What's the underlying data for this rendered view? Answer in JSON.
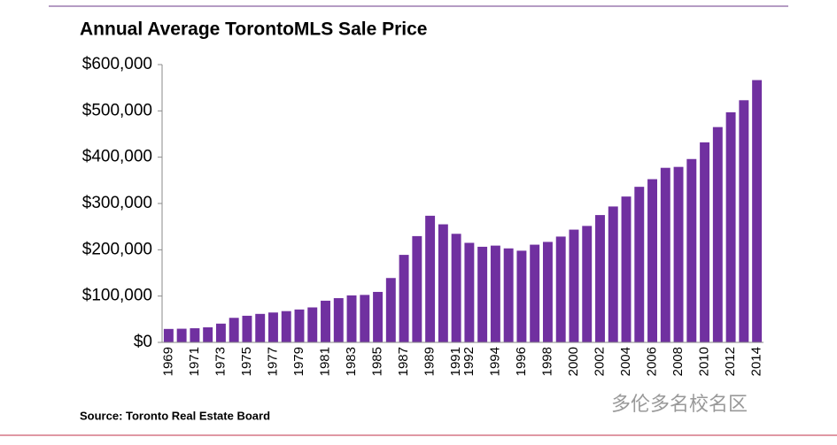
{
  "chart_data": {
    "type": "bar",
    "title": "Annual Average TorontoMLS Sale Price",
    "source": "Source: Toronto Real Estate Board",
    "watermark": "多伦多名校名区",
    "categories": [
      "1969",
      null,
      "1971",
      null,
      "1973",
      null,
      "1975",
      null,
      "1977",
      null,
      "1979",
      null,
      "1981",
      null,
      "1983",
      null,
      "1985",
      null,
      "1987",
      null,
      "1989",
      null,
      "1991",
      "1992",
      null,
      "1994",
      null,
      "1996",
      null,
      "1998",
      null,
      "2000",
      null,
      "2002",
      null,
      "2004",
      null,
      "2006",
      null,
      "2008",
      null,
      "2010",
      null,
      "2012",
      null,
      "2014"
    ],
    "values": [
      29000,
      29500,
      30500,
      32500,
      40500,
      53000,
      57500,
      61500,
      64500,
      67500,
      71000,
      75500,
      90000,
      95500,
      101500,
      102500,
      109000,
      139000,
      189000,
      229500,
      273500,
      255000,
      234500,
      215000,
      206500,
      209000,
      203000,
      198000,
      211000,
      217000,
      228500,
      243500,
      251500,
      275000,
      293500,
      315000,
      336000,
      352500,
      377000,
      379000,
      396000,
      432000,
      465000,
      497000,
      523000,
      566500
    ],
    "color": "#7030a0",
    "ylim": [
      0,
      600000
    ],
    "yticks": [
      {
        "value": 0,
        "label": "$0"
      },
      {
        "value": 100000,
        "label": "$100,000"
      },
      {
        "value": 200000,
        "label": "$200,000"
      },
      {
        "value": 300000,
        "label": "$300,000"
      },
      {
        "value": 400000,
        "label": "$400,000"
      },
      {
        "value": 500000,
        "label": "$500,000"
      },
      {
        "value": 600000,
        "label": "$600,000"
      }
    ]
  }
}
